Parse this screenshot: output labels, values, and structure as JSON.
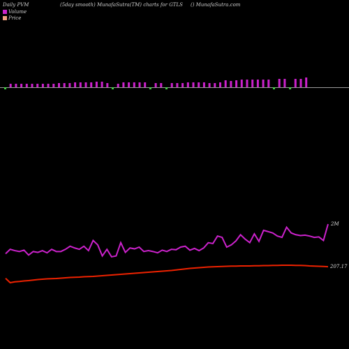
{
  "header": {
    "left": "Daily PVM",
    "center": "(5day smooth) MunafaSutra(TM) charts for GTLS",
    "right": "() MunafaSutra.com"
  },
  "legend": [
    {
      "label": "Volume",
      "color": "#cc22cc"
    },
    {
      "label": "Price",
      "color": "#f0a080"
    }
  ],
  "chart_data": [
    {
      "type": "bar",
      "title": "Volume",
      "series": [
        {
          "name": "Volume",
          "color": "#cc22cc",
          "down_color": "#44cc44",
          "values": [
            7,
            5,
            5,
            5,
            5,
            5,
            5,
            5,
            5,
            5,
            6,
            6,
            6,
            7,
            7,
            7,
            7,
            8,
            8,
            6,
            6,
            5,
            7,
            7,
            7,
            7,
            7,
            7,
            6,
            6,
            6,
            6,
            6,
            6,
            7,
            7,
            7,
            7,
            6,
            6,
            7,
            10,
            9,
            10,
            11,
            11,
            11,
            11,
            11,
            11,
            12,
            12,
            12,
            12,
            12,
            12,
            14
          ],
          "direction": [
            "down",
            "up",
            "up",
            "up",
            "up",
            "up",
            "up",
            "up",
            "up",
            "up",
            "up",
            "up",
            "up",
            "up",
            "up",
            "up",
            "up",
            "up",
            "up",
            "up",
            "down",
            "up",
            "up",
            "up",
            "up",
            "up",
            "up",
            "down",
            "up",
            "up",
            "down",
            "up",
            "up",
            "up",
            "up",
            "up",
            "up",
            "up",
            "up",
            "up",
            "up",
            "up",
            "up",
            "up",
            "up",
            "up",
            "up",
            "up",
            "up",
            "up",
            "down",
            "up",
            "up",
            "down",
            "up",
            "up",
            "up"
          ]
        }
      ]
    },
    {
      "type": "line",
      "series": [
        {
          "name": "Volume (5 day smooth)",
          "color": "#cc22cc",
          "end_label": "2M",
          "values": [
            1.45,
            1.55,
            1.52,
            1.5,
            1.53,
            1.42,
            1.5,
            1.48,
            1.52,
            1.47,
            1.55,
            1.5,
            1.5,
            1.55,
            1.62,
            1.58,
            1.55,
            1.62,
            1.52,
            1.75,
            1.65,
            1.4,
            1.55,
            1.38,
            1.4,
            1.7,
            1.48,
            1.58,
            1.56,
            1.6,
            1.5,
            1.52,
            1.5,
            1.47,
            1.53,
            1.5,
            1.55,
            1.54,
            1.6,
            1.62,
            1.53,
            1.57,
            1.52,
            1.58,
            1.7,
            1.68,
            1.85,
            1.82,
            1.6,
            1.65,
            1.74,
            1.88,
            1.78,
            1.7,
            1.9,
            1.73,
            1.98,
            1.95,
            1.92,
            1.85,
            1.82,
            2.05,
            1.92,
            1.88,
            1.86,
            1.87,
            1.85,
            1.82,
            1.83,
            1.75,
            2.12
          ]
        },
        {
          "name": "Price",
          "color": "#ee2200",
          "end_label": "207.17",
          "values": [
            200.5,
            198,
            198.5,
            198.7,
            199,
            199.2,
            199.5,
            199.8,
            200,
            200.2,
            200.3,
            200.4,
            200.6,
            200.8,
            201,
            201.1,
            201.2,
            201.4,
            201.5,
            201.6,
            201.8,
            202,
            202.2,
            202.4,
            202.6,
            202.8,
            203,
            203.2,
            203.4,
            203.6,
            203.8,
            204,
            204.2,
            204.4,
            204.6,
            204.8,
            205,
            205.3,
            205.6,
            205.9,
            206.2,
            206.4,
            206.6,
            206.8,
            207,
            207.1,
            207.2,
            207.3,
            207.4,
            207.5,
            207.5,
            207.6,
            207.6,
            207.6,
            207.7,
            207.7,
            207.8,
            207.8,
            207.9,
            207.9,
            208,
            208,
            208,
            207.9,
            207.9,
            207.8,
            207.6,
            207.5,
            207.4,
            207.3,
            207.17
          ]
        }
      ]
    }
  ]
}
